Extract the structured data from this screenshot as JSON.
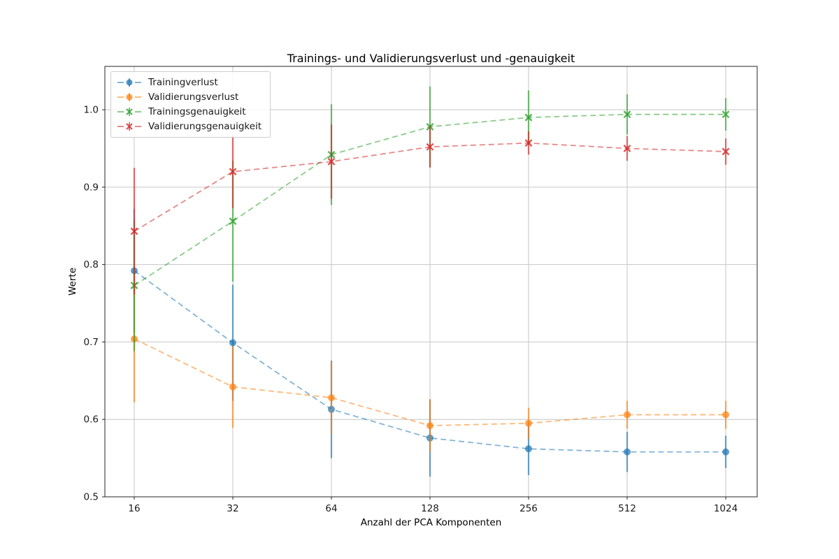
{
  "figure": {
    "title": "Trainings- und Validierungsverlust und -genauigkeit",
    "xlabel": "Anzahl der PCA Komponenten",
    "ylabel": "Werte"
  },
  "chart_data": {
    "type": "line",
    "title": "Trainings- und Validierungsverlust und -genauigkeit",
    "xlabel": "Anzahl der PCA Komponenten",
    "ylabel": "Werte",
    "x_scale": "log2",
    "categories": [
      16,
      32,
      64,
      128,
      256,
      512,
      1024
    ],
    "yticks": [
      0.5,
      0.6,
      0.7,
      0.8,
      0.9,
      1.0
    ],
    "ylim": [
      0.5,
      1.056
    ],
    "grid": true,
    "line_style": "dashed",
    "error_bars": true,
    "legend_position": "upper left",
    "series": [
      {
        "name": "Trainingverlust",
        "color": "#1f77b4",
        "marker": "circle",
        "values": [
          0.792,
          0.699,
          0.613,
          0.576,
          0.562,
          0.558,
          0.558
        ],
        "errors": [
          0.08,
          0.075,
          0.063,
          0.05,
          0.034,
          0.026,
          0.021
        ]
      },
      {
        "name": "Validierungsverlust",
        "color": "#ff7f0e",
        "marker": "circle",
        "values": [
          0.704,
          0.642,
          0.628,
          0.592,
          0.595,
          0.606,
          0.606
        ],
        "errors": [
          0.082,
          0.053,
          0.047,
          0.034,
          0.02,
          0.018,
          0.018
        ]
      },
      {
        "name": "Trainingsgenauigkeit",
        "color": "#2ca02c",
        "marker": "x",
        "values": [
          0.773,
          0.856,
          0.942,
          0.978,
          0.99,
          0.994,
          0.994
        ],
        "errors": [
          0.085,
          0.078,
          0.065,
          0.052,
          0.035,
          0.026,
          0.021
        ]
      },
      {
        "name": "Validierungsgenauigkeit",
        "color": "#d62728",
        "marker": "x",
        "values": [
          0.843,
          0.92,
          0.933,
          0.952,
          0.957,
          0.95,
          0.946
        ],
        "errors": [
          0.082,
          0.047,
          0.048,
          0.027,
          0.015,
          0.016,
          0.017
        ]
      }
    ]
  }
}
